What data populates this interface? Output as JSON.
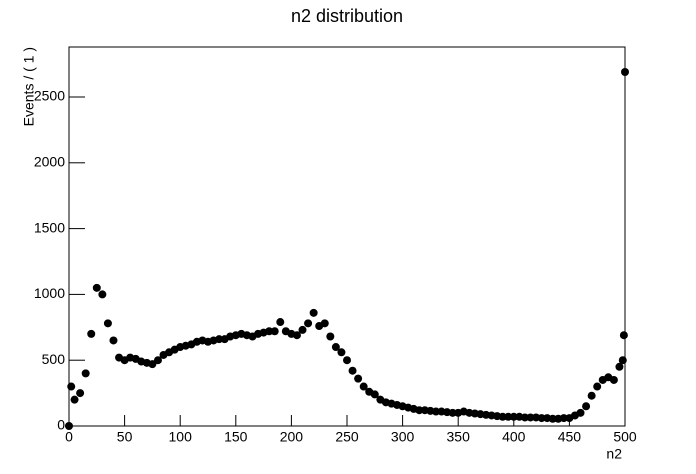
{
  "chart_data": {
    "type": "scatter",
    "title": "n2 distribution",
    "x_label": "n2",
    "y_label": "Events / ( 1 )",
    "color": "#000000",
    "xlim": [
      0,
      500
    ],
    "ylim": [
      0,
      2880
    ],
    "xticks": [
      0,
      50,
      100,
      150,
      200,
      250,
      300,
      350,
      400,
      450,
      500
    ],
    "yticks": [
      0,
      500,
      1000,
      1500,
      2000,
      2500
    ],
    "x": [
      0,
      2,
      5,
      10,
      15,
      20,
      25,
      30,
      35,
      40,
      45,
      50,
      55,
      60,
      65,
      70,
      75,
      80,
      85,
      90,
      95,
      100,
      105,
      110,
      115,
      120,
      125,
      130,
      135,
      140,
      145,
      150,
      155,
      160,
      165,
      170,
      175,
      180,
      185,
      190,
      195,
      200,
      205,
      210,
      215,
      220,
      225,
      230,
      235,
      240,
      245,
      250,
      255,
      260,
      265,
      270,
      275,
      280,
      285,
      290,
      295,
      300,
      305,
      310,
      315,
      320,
      325,
      330,
      335,
      340,
      345,
      350,
      355,
      360,
      365,
      370,
      375,
      380,
      385,
      390,
      395,
      400,
      405,
      410,
      415,
      420,
      425,
      430,
      435,
      440,
      445,
      450,
      455,
      460,
      465,
      470,
      475,
      480,
      485,
      490,
      495,
      498,
      499,
      500
    ],
    "values": [
      0,
      300,
      200,
      250,
      400,
      700,
      1050,
      1000,
      780,
      650,
      520,
      500,
      520,
      510,
      490,
      480,
      470,
      500,
      540,
      560,
      580,
      600,
      610,
      620,
      640,
      650,
      640,
      650,
      660,
      660,
      680,
      690,
      700,
      690,
      680,
      700,
      710,
      720,
      720,
      790,
      720,
      700,
      690,
      730,
      780,
      860,
      760,
      780,
      680,
      600,
      560,
      500,
      420,
      360,
      300,
      260,
      240,
      200,
      180,
      170,
      160,
      150,
      140,
      130,
      120,
      120,
      115,
      110,
      110,
      105,
      100,
      100,
      110,
      100,
      95,
      90,
      85,
      80,
      75,
      70,
      70,
      70,
      70,
      65,
      65,
      65,
      60,
      60,
      55,
      55,
      60,
      60,
      80,
      100,
      150,
      230,
      300,
      350,
      370,
      350,
      450,
      500,
      690,
      2690
    ]
  }
}
